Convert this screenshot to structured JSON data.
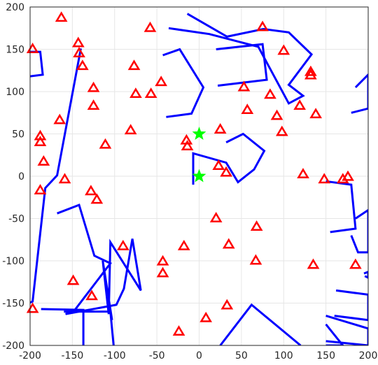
{
  "chart_data": {
    "type": "scatter",
    "xlim": [
      -200,
      200
    ],
    "ylim": [
      -200,
      200
    ],
    "x_ticks": [
      -200,
      -150,
      -100,
      -50,
      0,
      50,
      100,
      150,
      200
    ],
    "y_ticks": [
      -200,
      -150,
      -100,
      -50,
      0,
      50,
      100,
      150,
      200
    ],
    "grid": true,
    "colors": {
      "obstacles": "#0000ff",
      "triangles": "#ff0000",
      "stars": "#00ff00"
    },
    "obstacles": [
      [
        [
          -200,
          147
        ],
        [
          -188,
          147
        ],
        [
          -185,
          120
        ],
        [
          -200,
          118
        ]
      ],
      [
        [
          -140,
          151
        ],
        [
          -168,
          1
        ],
        [
          -182,
          -14
        ],
        [
          -197,
          -148
        ],
        [
          -252,
          -173
        ]
      ],
      [
        [
          -168,
          -44
        ],
        [
          -142,
          -34
        ],
        [
          -124,
          -94
        ],
        [
          -105,
          -103
        ],
        [
          -147,
          -158
        ],
        [
          -158,
          -163
        ],
        [
          -98,
          -152
        ],
        [
          -89,
          -133
        ],
        [
          -79,
          -74
        ],
        [
          -69,
          -135
        ],
        [
          -105,
          -78
        ],
        [
          -107,
          -163
        ],
        [
          -114,
          -100
        ],
        [
          -103,
          -170
        ]
      ],
      [
        [
          -187,
          -157
        ],
        [
          -137,
          -158
        ],
        [
          -137,
          -205
        ],
        [
          -190,
          -205
        ]
      ],
      [
        [
          -160,
          -160
        ],
        [
          -105,
          -160
        ],
        [
          -100,
          -213
        ],
        [
          -170,
          -213
        ]
      ],
      [
        [
          -43,
          143
        ],
        [
          -23,
          150
        ],
        [
          5,
          105
        ],
        [
          -9,
          74
        ],
        [
          -39,
          70
        ]
      ],
      [
        [
          -14,
          192
        ],
        [
          33,
          165
        ],
        [
          76,
          174
        ],
        [
          106,
          170
        ],
        [
          133,
          144
        ],
        [
          106,
          108
        ],
        [
          123,
          95
        ],
        [
          106,
          86
        ],
        [
          70,
          153
        ],
        [
          12,
          168
        ],
        [
          -36,
          175
        ]
      ],
      [
        [
          20,
          150
        ],
        [
          75,
          156
        ],
        [
          80,
          114
        ],
        [
          22,
          107
        ]
      ],
      [
        [
          32,
          40
        ],
        [
          52,
          50
        ],
        [
          77,
          30
        ],
        [
          65,
          8
        ],
        [
          46,
          -7
        ],
        [
          32,
          16
        ],
        [
          -7,
          27
        ],
        [
          -7,
          -10
        ]
      ],
      [
        [
          185,
          105
        ],
        [
          200,
          120
        ],
        [
          200,
          80
        ],
        [
          180,
          75
        ]
      ],
      [
        [
          150,
          -6
        ],
        [
          180,
          -10
        ],
        [
          185,
          -62
        ],
        [
          155,
          -66
        ]
      ],
      [
        [
          185,
          -50
        ],
        [
          200,
          -40
        ],
        [
          200,
          -90
        ],
        [
          188,
          -90
        ],
        [
          180,
          -70
        ]
      ],
      [
        [
          195,
          -115
        ],
        [
          200,
          -113
        ],
        [
          200,
          -120
        ],
        [
          196,
          -118
        ]
      ],
      [
        [
          162,
          -135
        ],
        [
          200,
          -140
        ],
        [
          200,
          -170
        ],
        [
          160,
          -165
        ]
      ],
      [
        [
          150,
          -165
        ],
        [
          200,
          -180
        ],
        [
          200,
          -200
        ],
        [
          150,
          -195
        ]
      ],
      [
        [
          25,
          -200
        ],
        [
          62,
          -152
        ],
        [
          120,
          -200
        ]
      ],
      [
        [
          150,
          -175
        ],
        [
          170,
          -200
        ],
        [
          150,
          -200
        ]
      ]
    ],
    "triangles": [
      [
        -163,
        187
      ],
      [
        -197,
        150
      ],
      [
        -143,
        157
      ],
      [
        -142,
        145
      ],
      [
        -58,
        175
      ],
      [
        -138,
        130
      ],
      [
        -77,
        130
      ],
      [
        -45,
        111
      ],
      [
        -125,
        104
      ],
      [
        -75,
        97
      ],
      [
        -57,
        97
      ],
      [
        -125,
        83
      ],
      [
        -165,
        66
      ],
      [
        -188,
        47
      ],
      [
        -188,
        40
      ],
      [
        -81,
        54
      ],
      [
        -111,
        37
      ],
      [
        -184,
        17
      ],
      [
        -15,
        42
      ],
      [
        -14,
        35
      ],
      [
        -159,
        -4
      ],
      [
        -188,
        -17
      ],
      [
        -128,
        -18
      ],
      [
        -121,
        -28
      ],
      [
        -90,
        -83
      ],
      [
        -18,
        -83
      ],
      [
        -43,
        -101
      ],
      [
        -43,
        -115
      ],
      [
        -149,
        -124
      ],
      [
        -127,
        -142
      ],
      [
        -197,
        -157
      ],
      [
        -24,
        -184
      ],
      [
        8,
        -168
      ],
      [
        33,
        -153
      ],
      [
        20,
        -50
      ],
      [
        35,
        -81
      ],
      [
        23,
        12
      ],
      [
        32,
        4
      ],
      [
        25,
        55
      ],
      [
        53,
        105
      ],
      [
        57,
        78
      ],
      [
        75,
        176
      ],
      [
        84,
        96
      ],
      [
        92,
        71
      ],
      [
        98,
        52
      ],
      [
        100,
        148
      ],
      [
        119,
        83
      ],
      [
        132,
        123
      ],
      [
        132,
        119
      ],
      [
        138,
        73
      ],
      [
        123,
        2
      ],
      [
        148,
        -4
      ],
      [
        170,
        -4
      ],
      [
        176,
        -1
      ],
      [
        68,
        -60
      ],
      [
        67,
        -100
      ],
      [
        135,
        -105
      ],
      [
        185,
        -105
      ]
    ],
    "stars": [
      [
        0,
        50
      ],
      [
        0,
        0
      ]
    ]
  }
}
